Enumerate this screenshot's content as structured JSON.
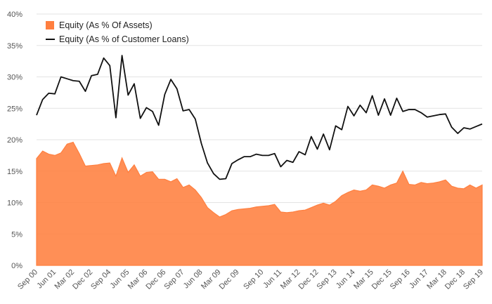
{
  "chart_data": {
    "type": "area",
    "title": "",
    "xlabel": "",
    "ylabel": "",
    "ylim": [
      0,
      40
    ],
    "grid": true,
    "legend_position": "top-left",
    "y_ticks": [
      0,
      5,
      10,
      15,
      20,
      25,
      30,
      35,
      40
    ],
    "y_tick_labels": [
      "0%",
      "5%",
      "10%",
      "15%",
      "20%",
      "25%",
      "30%",
      "35%",
      "40%"
    ],
    "x_tick_labels": [
      "Sep 00",
      "Jun 01",
      "Mar 02",
      "Dec 02",
      "Sep 04",
      "Jun 05",
      "Mar 06",
      "Dec 06",
      "Sep 07",
      "Jun 08",
      "Mar 09",
      "Dec 09",
      "Sep 10",
      "Jun 11",
      "Mar 12",
      "Dec 12",
      "Sep 13",
      "Jun 14",
      "Mar 15",
      "Dec 15",
      "Sep 16",
      "Jun 17",
      "Mar 18",
      "Dec 18",
      "Sep 19"
    ],
    "series": [
      {
        "name": "Equity (As % Of Assets)",
        "kind": "area",
        "color": "#ff7f3f",
        "values": [
          17.0,
          18.2,
          17.7,
          17.5,
          17.9,
          19.3,
          19.6,
          17.8,
          15.8,
          15.9,
          16.0,
          16.2,
          16.3,
          14.2,
          17.1,
          14.8,
          16.0,
          14.2,
          14.8,
          14.9,
          13.7,
          13.7,
          13.3,
          13.8,
          12.4,
          12.8,
          12.0,
          10.8,
          9.2,
          8.4,
          7.7,
          8.1,
          8.7,
          8.9,
          9.0,
          9.1,
          9.3,
          9.4,
          9.5,
          9.7,
          8.5,
          8.4,
          8.5,
          8.7,
          8.8,
          9.2,
          9.6,
          9.9,
          9.6,
          10.2,
          11.1,
          11.6,
          12.0,
          11.8,
          12.0,
          12.8,
          12.6,
          12.3,
          12.8,
          13.1,
          15.0,
          12.9,
          12.8,
          13.2,
          13.0,
          13.1,
          13.3,
          13.6,
          12.6,
          12.3,
          12.2,
          12.8,
          12.3,
          12.8
        ]
      },
      {
        "name": "Equity (As % of Customer Loans)",
        "kind": "line",
        "color": "#111111",
        "values": [
          23.9,
          26.4,
          27.4,
          27.3,
          30.0,
          29.7,
          29.4,
          29.3,
          27.7,
          30.2,
          30.4,
          33.0,
          31.8,
          23.5,
          33.4,
          27.1,
          28.9,
          23.4,
          25.1,
          24.5,
          22.3,
          27.2,
          29.6,
          28.1,
          24.6,
          24.8,
          23.3,
          19.4,
          16.3,
          14.6,
          13.7,
          13.8,
          16.2,
          16.8,
          17.3,
          17.3,
          17.7,
          17.5,
          17.5,
          17.8,
          15.7,
          16.7,
          16.4,
          18.1,
          17.6,
          20.5,
          18.5,
          20.9,
          18.4,
          22.2,
          21.6,
          25.3,
          23.8,
          25.5,
          24.3,
          27.0,
          23.9,
          26.5,
          23.9,
          26.6,
          24.5,
          24.8,
          24.8,
          24.3,
          23.6,
          23.8,
          24.0,
          24.1,
          22.0,
          21.0,
          21.9,
          21.7,
          22.1,
          22.5
        ]
      }
    ]
  }
}
